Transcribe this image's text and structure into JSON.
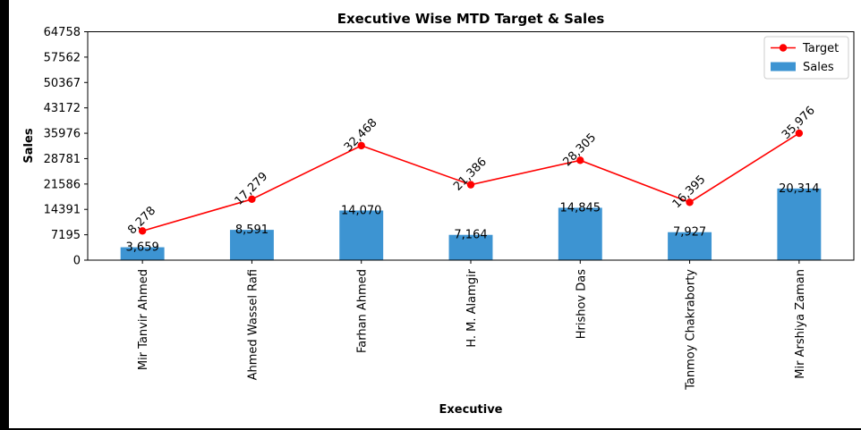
{
  "chart_data": {
    "type": "bar",
    "title": "Executive Wise MTD Target & Sales",
    "xlabel": "Executive",
    "ylabel": "Sales",
    "ylim": [
      0,
      64758
    ],
    "yticks": [
      0,
      7195,
      14391,
      21586,
      28781,
      35976,
      43172,
      50367,
      57562,
      64758
    ],
    "grid": false,
    "legend_position": "top-right",
    "categories": [
      "Mir Tanvir Ahmed",
      "Ahmed Wassel Rafi",
      "Farhan Ahmed",
      "H. M. Alamgir",
      "Hrishov Das",
      "Tanmoy Chakraborty",
      "Mir Arshiya Zaman"
    ],
    "series": [
      {
        "name": "Target",
        "kind": "line",
        "color": "#ff0000",
        "values": [
          8278,
          17279,
          32468,
          21386,
          28305,
          16395,
          35976
        ],
        "labels": [
          "8,278",
          "17,279",
          "32,468",
          "21,386",
          "28,305",
          "16,395",
          "35,976"
        ]
      },
      {
        "name": "Sales",
        "kind": "bar",
        "color": "#3d94d2",
        "values": [
          3659,
          8591,
          14070,
          7164,
          14845,
          7927,
          20314
        ],
        "labels": [
          "3,659",
          "8,591",
          "14,070",
          "7,164",
          "14,845",
          "7,927",
          "20,314"
        ]
      }
    ]
  }
}
